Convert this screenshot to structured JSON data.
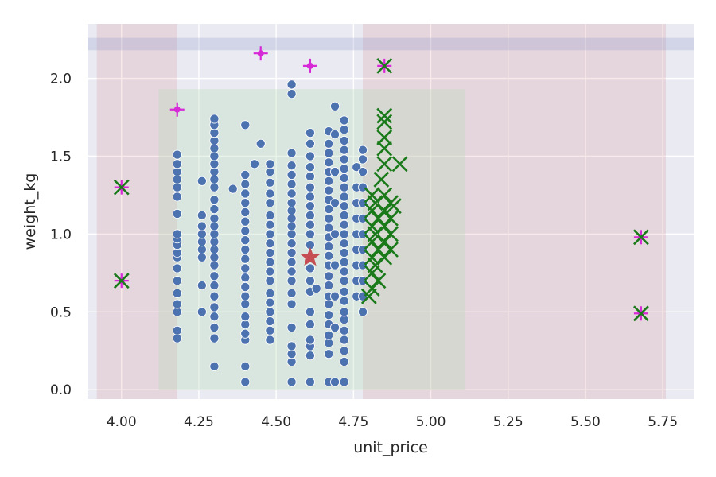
{
  "chart_data": {
    "type": "scatter",
    "xlabel": "unit_price",
    "ylabel": "weight_kg",
    "xlim": [
      3.89,
      5.85
    ],
    "ylim": [
      -0.06,
      2.35
    ],
    "x_ticks": [
      4.0,
      4.25,
      4.5,
      4.75,
      5.0,
      5.25,
      5.5,
      5.75
    ],
    "x_tick_labels": [
      "4.00",
      "4.25",
      "4.50",
      "4.75",
      "5.00",
      "5.25",
      "5.50",
      "5.75"
    ],
    "y_ticks": [
      0.0,
      0.5,
      1.0,
      1.5,
      2.0
    ],
    "y_tick_labels": [
      "0.0",
      "0.5",
      "1.0",
      "1.5",
      "2.0"
    ],
    "grid": true,
    "colors": {
      "plot_bg": "#eaeaf2",
      "grid": "#ffffff",
      "points": "#4c72b0",
      "star": "#c44e52",
      "green_x": "#1a7a1a",
      "magenta_plus": "#d62ad6",
      "red_band": "#c44e52",
      "green_band": "#b3d9b3",
      "blue_band": "#8c96c8"
    },
    "bands": {
      "x_red": [
        [
          3.92,
          4.18
        ],
        [
          4.78,
          5.76
        ]
      ],
      "x_green": [
        [
          4.12,
          5.11
        ]
      ],
      "y_blue": [
        [
          2.18,
          2.26
        ]
      ]
    },
    "points": [
      [
        4.18,
        0.33
      ],
      [
        4.18,
        0.38
      ],
      [
        4.18,
        0.5
      ],
      [
        4.18,
        0.55
      ],
      [
        4.18,
        0.62
      ],
      [
        4.18,
        0.7
      ],
      [
        4.18,
        0.78
      ],
      [
        4.18,
        0.85
      ],
      [
        4.18,
        0.88
      ],
      [
        4.18,
        0.93
      ],
      [
        4.18,
        0.97
      ],
      [
        4.18,
        1.0
      ],
      [
        4.18,
        1.13
      ],
      [
        4.18,
        1.24
      ],
      [
        4.18,
        1.3
      ],
      [
        4.18,
        1.35
      ],
      [
        4.18,
        1.4
      ],
      [
        4.18,
        1.45
      ],
      [
        4.18,
        1.51
      ],
      [
        4.26,
        0.5
      ],
      [
        4.26,
        0.67
      ],
      [
        4.26,
        0.85
      ],
      [
        4.26,
        0.9
      ],
      [
        4.26,
        0.95
      ],
      [
        4.26,
        1.0
      ],
      [
        4.26,
        1.05
      ],
      [
        4.26,
        1.12
      ],
      [
        4.26,
        1.34
      ],
      [
        4.3,
        0.15
      ],
      [
        4.3,
        0.33
      ],
      [
        4.3,
        0.4
      ],
      [
        4.3,
        0.47
      ],
      [
        4.3,
        0.53
      ],
      [
        4.3,
        0.6
      ],
      [
        4.3,
        0.67
      ],
      [
        4.3,
        0.73
      ],
      [
        4.3,
        0.8
      ],
      [
        4.3,
        0.85
      ],
      [
        4.3,
        0.9
      ],
      [
        4.3,
        0.95
      ],
      [
        4.3,
        1.0
      ],
      [
        4.3,
        1.05
      ],
      [
        4.3,
        1.1
      ],
      [
        4.3,
        1.16
      ],
      [
        4.3,
        1.22
      ],
      [
        4.3,
        1.3
      ],
      [
        4.3,
        1.35
      ],
      [
        4.3,
        1.4
      ],
      [
        4.3,
        1.45
      ],
      [
        4.3,
        1.5
      ],
      [
        4.3,
        1.55
      ],
      [
        4.3,
        1.6
      ],
      [
        4.3,
        1.65
      ],
      [
        4.3,
        1.7
      ],
      [
        4.3,
        1.74
      ],
      [
        4.36,
        1.29
      ],
      [
        4.4,
        0.05
      ],
      [
        4.4,
        0.15
      ],
      [
        4.4,
        0.32
      ],
      [
        4.4,
        0.36
      ],
      [
        4.4,
        0.42
      ],
      [
        4.4,
        0.47
      ],
      [
        4.4,
        0.55
      ],
      [
        4.4,
        0.6
      ],
      [
        4.4,
        0.66
      ],
      [
        4.4,
        0.72
      ],
      [
        4.4,
        0.78
      ],
      [
        4.4,
        0.84
      ],
      [
        4.4,
        0.9
      ],
      [
        4.4,
        0.96
      ],
      [
        4.4,
        1.02
      ],
      [
        4.4,
        1.08
      ],
      [
        4.4,
        1.14
      ],
      [
        4.4,
        1.2
      ],
      [
        4.4,
        1.26
      ],
      [
        4.4,
        1.32
      ],
      [
        4.4,
        1.38
      ],
      [
        4.4,
        1.7
      ],
      [
        4.43,
        1.45
      ],
      [
        4.45,
        1.58
      ],
      [
        4.48,
        0.32
      ],
      [
        4.48,
        0.38
      ],
      [
        4.48,
        0.44
      ],
      [
        4.48,
        0.5
      ],
      [
        4.48,
        0.56
      ],
      [
        4.48,
        0.62
      ],
      [
        4.48,
        0.7
      ],
      [
        4.48,
        0.76
      ],
      [
        4.48,
        0.82
      ],
      [
        4.48,
        0.88
      ],
      [
        4.48,
        0.94
      ],
      [
        4.48,
        1.0
      ],
      [
        4.48,
        1.06
      ],
      [
        4.48,
        1.12
      ],
      [
        4.48,
        1.2
      ],
      [
        4.48,
        1.26
      ],
      [
        4.48,
        1.33
      ],
      [
        4.48,
        1.4
      ],
      [
        4.48,
        1.45
      ],
      [
        4.55,
        0.05
      ],
      [
        4.55,
        0.18
      ],
      [
        4.55,
        0.23
      ],
      [
        4.55,
        0.28
      ],
      [
        4.55,
        0.4
      ],
      [
        4.55,
        0.55
      ],
      [
        4.55,
        0.62
      ],
      [
        4.55,
        0.7
      ],
      [
        4.55,
        0.76
      ],
      [
        4.55,
        0.82
      ],
      [
        4.55,
        0.88
      ],
      [
        4.55,
        0.94
      ],
      [
        4.55,
        1.0
      ],
      [
        4.55,
        1.05
      ],
      [
        4.55,
        1.1
      ],
      [
        4.55,
        1.15
      ],
      [
        4.55,
        1.2
      ],
      [
        4.55,
        1.26
      ],
      [
        4.55,
        1.32
      ],
      [
        4.55,
        1.38
      ],
      [
        4.55,
        1.44
      ],
      [
        4.55,
        1.52
      ],
      [
        4.55,
        1.9
      ],
      [
        4.55,
        1.96
      ],
      [
        4.61,
        0.05
      ],
      [
        4.61,
        0.22
      ],
      [
        4.61,
        0.28
      ],
      [
        4.61,
        0.32
      ],
      [
        4.61,
        0.42
      ],
      [
        4.61,
        0.5
      ],
      [
        4.61,
        0.63
      ],
      [
        4.61,
        0.7
      ],
      [
        4.61,
        0.78
      ],
      [
        4.61,
        0.85
      ],
      [
        4.61,
        0.93
      ],
      [
        4.61,
        1.0
      ],
      [
        4.61,
        1.06
      ],
      [
        4.61,
        1.12
      ],
      [
        4.61,
        1.18
      ],
      [
        4.61,
        1.24
      ],
      [
        4.61,
        1.3
      ],
      [
        4.61,
        1.37
      ],
      [
        4.61,
        1.43
      ],
      [
        4.61,
        1.5
      ],
      [
        4.61,
        1.58
      ],
      [
        4.61,
        1.65
      ],
      [
        4.63,
        0.65
      ],
      [
        4.67,
        0.05
      ],
      [
        4.67,
        0.23
      ],
      [
        4.67,
        0.3
      ],
      [
        4.67,
        0.35
      ],
      [
        4.67,
        0.42
      ],
      [
        4.67,
        0.48
      ],
      [
        4.67,
        0.55
      ],
      [
        4.67,
        0.6
      ],
      [
        4.67,
        0.67
      ],
      [
        4.67,
        0.73
      ],
      [
        4.67,
        0.8
      ],
      [
        4.67,
        0.86
      ],
      [
        4.67,
        0.92
      ],
      [
        4.67,
        0.98
      ],
      [
        4.67,
        1.04
      ],
      [
        4.67,
        1.1
      ],
      [
        4.67,
        1.16
      ],
      [
        4.67,
        1.22
      ],
      [
        4.67,
        1.28
      ],
      [
        4.67,
        1.34
      ],
      [
        4.67,
        1.4
      ],
      [
        4.67,
        1.46
      ],
      [
        4.67,
        1.52
      ],
      [
        4.67,
        1.58
      ],
      [
        4.67,
        1.66
      ],
      [
        4.69,
        0.05
      ],
      [
        4.69,
        0.4
      ],
      [
        4.69,
        0.6
      ],
      [
        4.69,
        0.8
      ],
      [
        4.69,
        1.0
      ],
      [
        4.69,
        1.2
      ],
      [
        4.69,
        1.4
      ],
      [
        4.69,
        1.64
      ],
      [
        4.69,
        1.82
      ],
      [
        4.72,
        0.05
      ],
      [
        4.72,
        0.18
      ],
      [
        4.72,
        0.25
      ],
      [
        4.72,
        0.32
      ],
      [
        4.72,
        0.38
      ],
      [
        4.72,
        0.45
      ],
      [
        4.72,
        0.5
      ],
      [
        4.72,
        0.57
      ],
      [
        4.72,
        0.63
      ],
      [
        4.72,
        0.7
      ],
      [
        4.72,
        0.76
      ],
      [
        4.72,
        0.82
      ],
      [
        4.72,
        0.88
      ],
      [
        4.72,
        0.94
      ],
      [
        4.72,
        1.0
      ],
      [
        4.72,
        1.06
      ],
      [
        4.72,
        1.12
      ],
      [
        4.72,
        1.18
      ],
      [
        4.72,
        1.24
      ],
      [
        4.72,
        1.3
      ],
      [
        4.72,
        1.36
      ],
      [
        4.72,
        1.42
      ],
      [
        4.72,
        1.48
      ],
      [
        4.72,
        1.54
      ],
      [
        4.72,
        1.6
      ],
      [
        4.72,
        1.67
      ],
      [
        4.72,
        1.73
      ],
      [
        4.76,
        0.6
      ],
      [
        4.76,
        0.7
      ],
      [
        4.76,
        0.8
      ],
      [
        4.76,
        0.9
      ],
      [
        4.76,
        1.0
      ],
      [
        4.76,
        1.1
      ],
      [
        4.76,
        1.2
      ],
      [
        4.76,
        1.3
      ],
      [
        4.76,
        1.43
      ],
      [
        4.78,
        0.5
      ],
      [
        4.78,
        0.6
      ],
      [
        4.78,
        0.7
      ],
      [
        4.78,
        0.8
      ],
      [
        4.78,
        0.9
      ],
      [
        4.78,
        1.0
      ],
      [
        4.78,
        1.1
      ],
      [
        4.78,
        1.2
      ],
      [
        4.78,
        1.3
      ],
      [
        4.78,
        1.4
      ],
      [
        4.78,
        1.48
      ],
      [
        4.78,
        1.54
      ]
    ],
    "star": [
      4.61,
      0.85
    ],
    "green_x": [
      [
        4.0,
        1.3
      ],
      [
        4.0,
        0.7
      ],
      [
        4.85,
        2.08
      ],
      [
        5.68,
        0.98
      ],
      [
        5.68,
        0.49
      ],
      [
        4.8,
        0.6
      ],
      [
        4.81,
        0.65
      ],
      [
        4.81,
        0.75
      ],
      [
        4.81,
        0.85
      ],
      [
        4.81,
        0.95
      ],
      [
        4.81,
        1.05
      ],
      [
        4.81,
        1.15
      ],
      [
        4.81,
        1.25
      ],
      [
        4.82,
        0.8
      ],
      [
        4.82,
        1.0
      ],
      [
        4.82,
        1.2
      ],
      [
        4.83,
        0.7
      ],
      [
        4.83,
        0.9
      ],
      [
        4.83,
        1.1
      ],
      [
        4.84,
        1.35
      ],
      [
        4.85,
        0.85
      ],
      [
        4.85,
        0.95
      ],
      [
        4.85,
        1.05
      ],
      [
        4.85,
        1.15
      ],
      [
        4.85,
        1.25
      ],
      [
        4.85,
        1.45
      ],
      [
        4.85,
        1.55
      ],
      [
        4.85,
        1.62
      ],
      [
        4.85,
        1.72
      ],
      [
        4.85,
        1.76
      ],
      [
        4.87,
        0.9
      ],
      [
        4.87,
        1.0
      ],
      [
        4.87,
        1.1
      ],
      [
        4.87,
        1.2
      ],
      [
        4.88,
        1.18
      ],
      [
        4.9,
        1.45
      ]
    ],
    "magenta_plus": [
      [
        4.0,
        1.3
      ],
      [
        4.0,
        0.7
      ],
      [
        4.18,
        1.8
      ],
      [
        4.45,
        2.16
      ],
      [
        4.61,
        2.08
      ],
      [
        4.85,
        2.08
      ],
      [
        5.68,
        0.98
      ],
      [
        5.68,
        0.49
      ]
    ]
  }
}
